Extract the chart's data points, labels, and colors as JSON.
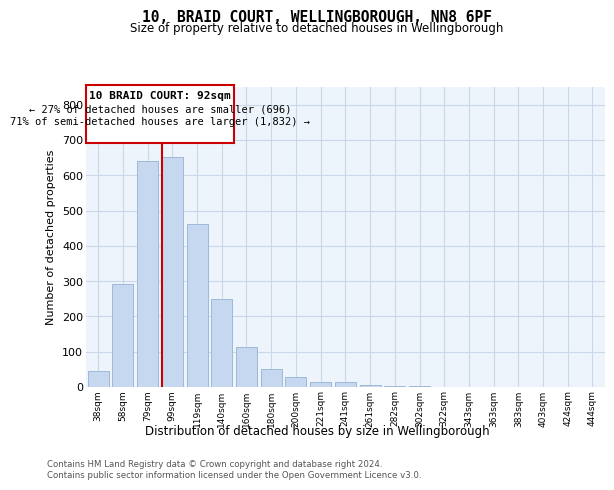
{
  "title_line1": "10, BRAID COURT, WELLINGBOROUGH, NN8 6PF",
  "title_line2": "Size of property relative to detached houses in Wellingborough",
  "xlabel": "Distribution of detached houses by size in Wellingborough",
  "ylabel": "Number of detached properties",
  "footer_line1": "Contains HM Land Registry data © Crown copyright and database right 2024.",
  "footer_line2": "Contains public sector information licensed under the Open Government Licence v3.0.",
  "annotation_line1": "10 BRAID COURT: 92sqm",
  "annotation_line2": "← 27% of detached houses are smaller (696)",
  "annotation_line3": "71% of semi-detached houses are larger (1,832) →",
  "categories": [
    "38sqm",
    "58sqm",
    "79sqm",
    "99sqm",
    "119sqm",
    "140sqm",
    "160sqm",
    "180sqm",
    "200sqm",
    "221sqm",
    "241sqm",
    "261sqm",
    "282sqm",
    "302sqm",
    "322sqm",
    "343sqm",
    "363sqm",
    "383sqm",
    "403sqm",
    "424sqm",
    "444sqm"
  ],
  "values": [
    45,
    293,
    641,
    651,
    463,
    249,
    113,
    50,
    28,
    15,
    14,
    5,
    2,
    2,
    1,
    1,
    0,
    0,
    0,
    0,
    0
  ],
  "bar_color": "#c5d8f0",
  "bar_edge_color": "#a0b8d8",
  "vline_color": "#cc0000",
  "vline_x": 3,
  "ylim": [
    0,
    850
  ],
  "yticks": [
    0,
    100,
    200,
    300,
    400,
    500,
    600,
    700,
    800
  ],
  "grid_color": "#c8d8e8",
  "bg_color": "#eef4fb",
  "annotation_box_edge_color": "#cc0000",
  "fig_bg_color": "#ffffff"
}
